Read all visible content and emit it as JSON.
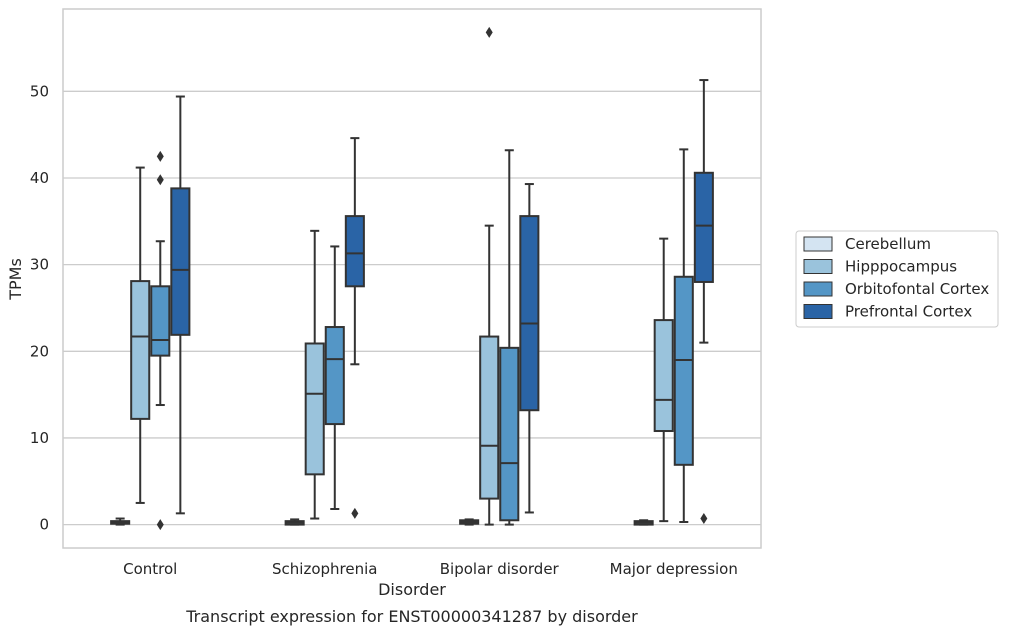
{
  "caption": "Transcript expression for ENST00000341287 by disorder",
  "chart_data": {
    "type": "box",
    "xlabel": "Disorder",
    "ylabel": "TPMs",
    "ylim": [
      -2.7,
      59.5
    ],
    "yticks": [
      0,
      10,
      20,
      30,
      40,
      50
    ],
    "grid": "horizontal",
    "legend_position": "right",
    "categories": [
      "Control",
      "Schizophrenia",
      "Bipolar disorder",
      "Major depression"
    ],
    "series": [
      {
        "name": "Cerebellum",
        "color": "#d4e4f2",
        "boxes": [
          {
            "whisker_low": 0.0,
            "q1": 0.1,
            "median": 0.3,
            "q3": 0.4,
            "whisker_high": 0.7,
            "outliers": []
          },
          {
            "whisker_low": 0.0,
            "q1": 0.0,
            "median": 0.2,
            "q3": 0.4,
            "whisker_high": 0.6,
            "outliers": []
          },
          {
            "whisker_low": 0.0,
            "q1": 0.1,
            "median": 0.3,
            "q3": 0.5,
            "whisker_high": 0.6,
            "outliers": []
          },
          {
            "whisker_low": 0.0,
            "q1": 0.0,
            "median": 0.2,
            "q3": 0.4,
            "whisker_high": 0.5,
            "outliers": []
          }
        ]
      },
      {
        "name": "Hipppocampus",
        "color": "#9ac3dc",
        "boxes": [
          {
            "whisker_low": 2.5,
            "q1": 12.2,
            "median": 21.7,
            "q3": 28.1,
            "whisker_high": 41.2,
            "outliers": []
          },
          {
            "whisker_low": 0.7,
            "q1": 5.8,
            "median": 15.1,
            "q3": 20.9,
            "whisker_high": 33.9,
            "outliers": []
          },
          {
            "whisker_low": 0.0,
            "q1": 3.0,
            "median": 9.1,
            "q3": 21.7,
            "whisker_high": 34.5,
            "outliers": [
              56.8
            ]
          },
          {
            "whisker_low": 0.4,
            "q1": 10.8,
            "median": 14.4,
            "q3": 23.6,
            "whisker_high": 33.0,
            "outliers": []
          }
        ]
      },
      {
        "name": "Orbitofontal Cortex",
        "color": "#5496c6",
        "boxes": [
          {
            "whisker_low": 13.8,
            "q1": 19.5,
            "median": 21.3,
            "q3": 27.5,
            "whisker_high": 32.7,
            "outliers": [
              42.5,
              39.8,
              0.0
            ]
          },
          {
            "whisker_low": 1.8,
            "q1": 11.6,
            "median": 19.1,
            "q3": 22.8,
            "whisker_high": 32.1,
            "outliers": []
          },
          {
            "whisker_low": 0.0,
            "q1": 0.5,
            "median": 7.1,
            "q3": 20.4,
            "whisker_high": 43.2,
            "outliers": []
          },
          {
            "whisker_low": 0.3,
            "q1": 6.9,
            "median": 19.0,
            "q3": 28.6,
            "whisker_high": 43.3,
            "outliers": []
          }
        ]
      },
      {
        "name": "Prefrontal Cortex",
        "color": "#2a64a6",
        "boxes": [
          {
            "whisker_low": 1.3,
            "q1": 21.9,
            "median": 29.4,
            "q3": 38.8,
            "whisker_high": 49.4,
            "outliers": []
          },
          {
            "whisker_low": 18.5,
            "q1": 27.5,
            "median": 31.3,
            "q3": 35.6,
            "whisker_high": 44.6,
            "outliers": [
              1.3
            ]
          },
          {
            "whisker_low": 1.4,
            "q1": 13.2,
            "median": 23.2,
            "q3": 35.6,
            "whisker_high": 39.3,
            "outliers": []
          },
          {
            "whisker_low": 21.0,
            "q1": 28.0,
            "median": 34.5,
            "q3": 40.6,
            "whisker_high": 51.3,
            "outliers": [
              0.7
            ]
          }
        ]
      }
    ]
  }
}
